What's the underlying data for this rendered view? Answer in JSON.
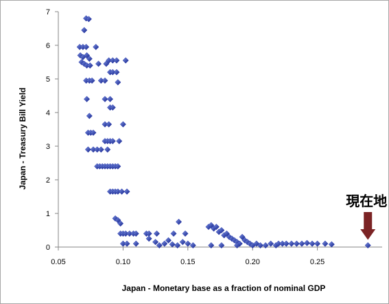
{
  "chart_data": {
    "type": "scatter",
    "title": "",
    "xlabel": "Japan - Monetary base as a fraction of nominal GDP",
    "ylabel": "Japan - Treasury Bill Yield",
    "xlim": [
      0.05,
      0.3
    ],
    "ylim": [
      0,
      7
    ],
    "xticks": [
      "0.05",
      "0.10",
      "0.15",
      "0.20",
      "0.25"
    ],
    "xtick_values": [
      0.05,
      0.1,
      0.15,
      0.2,
      0.25
    ],
    "yticks": [
      "0",
      "1",
      "2",
      "3",
      "4",
      "5",
      "6",
      "7"
    ],
    "ytick_values": [
      0,
      1,
      2,
      3,
      4,
      5,
      6,
      7
    ],
    "grid": false,
    "legend": "none",
    "marker": "diamond",
    "marker_color": "#1f2fa8",
    "annotation": {
      "text": "現在地",
      "points_to": [
        0.289,
        0.05
      ],
      "arrow_color": "#7b2324"
    },
    "points": [
      [
        0.0715,
        6.8
      ],
      [
        0.0735,
        6.78
      ],
      [
        0.07,
        6.45
      ],
      [
        0.0665,
        5.95
      ],
      [
        0.069,
        5.95
      ],
      [
        0.0715,
        5.95
      ],
      [
        0.079,
        5.95
      ],
      [
        0.067,
        5.7
      ],
      [
        0.069,
        5.65
      ],
      [
        0.072,
        5.7
      ],
      [
        0.074,
        5.6
      ],
      [
        0.068,
        5.5
      ],
      [
        0.07,
        5.45
      ],
      [
        0.072,
        5.4
      ],
      [
        0.0745,
        5.4
      ],
      [
        0.081,
        5.45
      ],
      [
        0.087,
        5.45
      ],
      [
        0.089,
        5.55
      ],
      [
        0.092,
        5.55
      ],
      [
        0.095,
        5.55
      ],
      [
        0.102,
        5.55
      ],
      [
        0.09,
        5.2
      ],
      [
        0.092,
        5.2
      ],
      [
        0.095,
        5.2
      ],
      [
        0.0715,
        4.95
      ],
      [
        0.074,
        4.95
      ],
      [
        0.076,
        4.95
      ],
      [
        0.083,
        4.95
      ],
      [
        0.086,
        4.95
      ],
      [
        0.096,
        4.9
      ],
      [
        0.072,
        4.4
      ],
      [
        0.086,
        4.4
      ],
      [
        0.09,
        4.4
      ],
      [
        0.074,
        3.9
      ],
      [
        0.09,
        4.15
      ],
      [
        0.092,
        4.15
      ],
      [
        0.073,
        3.4
      ],
      [
        0.075,
        3.4
      ],
      [
        0.077,
        3.4
      ],
      [
        0.086,
        3.65
      ],
      [
        0.089,
        3.65
      ],
      [
        0.1,
        3.65
      ],
      [
        0.086,
        3.15
      ],
      [
        0.088,
        3.15
      ],
      [
        0.09,
        3.15
      ],
      [
        0.092,
        3.15
      ],
      [
        0.097,
        3.15
      ],
      [
        0.073,
        2.9
      ],
      [
        0.077,
        2.9
      ],
      [
        0.08,
        2.9
      ],
      [
        0.083,
        2.9
      ],
      [
        0.088,
        2.9
      ],
      [
        0.08,
        2.4
      ],
      [
        0.082,
        2.4
      ],
      [
        0.084,
        2.4
      ],
      [
        0.086,
        2.4
      ],
      [
        0.088,
        2.4
      ],
      [
        0.09,
        2.4
      ],
      [
        0.092,
        2.4
      ],
      [
        0.094,
        2.4
      ],
      [
        0.096,
        2.4
      ],
      [
        0.09,
        1.65
      ],
      [
        0.092,
        1.65
      ],
      [
        0.094,
        1.65
      ],
      [
        0.096,
        1.65
      ],
      [
        0.099,
        1.65
      ],
      [
        0.103,
        1.65
      ],
      [
        0.094,
        0.85
      ],
      [
        0.096,
        0.8
      ],
      [
        0.098,
        0.7
      ],
      [
        0.098,
        0.4
      ],
      [
        0.1,
        0.4
      ],
      [
        0.102,
        0.4
      ],
      [
        0.105,
        0.4
      ],
      [
        0.108,
        0.4
      ],
      [
        0.11,
        0.4
      ],
      [
        0.118,
        0.4
      ],
      [
        0.12,
        0.4
      ],
      [
        0.126,
        0.4
      ],
      [
        0.139,
        0.4
      ],
      [
        0.1,
        0.1
      ],
      [
        0.103,
        0.1
      ],
      [
        0.11,
        0.1
      ],
      [
        0.12,
        0.25
      ],
      [
        0.125,
        0.15
      ],
      [
        0.128,
        0.05
      ],
      [
        0.132,
        0.1
      ],
      [
        0.135,
        0.2
      ],
      [
        0.138,
        0.08
      ],
      [
        0.142,
        0.05
      ],
      [
        0.143,
        0.75
      ],
      [
        0.146,
        0.15
      ],
      [
        0.148,
        0.4
      ],
      [
        0.15,
        0.1
      ],
      [
        0.154,
        0.05
      ],
      [
        0.166,
        0.6
      ],
      [
        0.168,
        0.65
      ],
      [
        0.17,
        0.55
      ],
      [
        0.172,
        0.6
      ],
      [
        0.174,
        0.45
      ],
      [
        0.176,
        0.5
      ],
      [
        0.178,
        0.35
      ],
      [
        0.18,
        0.4
      ],
      [
        0.182,
        0.3
      ],
      [
        0.184,
        0.25
      ],
      [
        0.186,
        0.2
      ],
      [
        0.188,
        0.15
      ],
      [
        0.19,
        0.1
      ],
      [
        0.192,
        0.3
      ],
      [
        0.194,
        0.2
      ],
      [
        0.196,
        0.15
      ],
      [
        0.198,
        0.1
      ],
      [
        0.2,
        0.05
      ],
      [
        0.203,
        0.1
      ],
      [
        0.168,
        0.05
      ],
      [
        0.176,
        0.05
      ],
      [
        0.188,
        0.05
      ],
      [
        0.206,
        0.05
      ],
      [
        0.21,
        0.05
      ],
      [
        0.214,
        0.1
      ],
      [
        0.218,
        0.05
      ],
      [
        0.22,
        0.1
      ],
      [
        0.223,
        0.1
      ],
      [
        0.226,
        0.1
      ],
      [
        0.23,
        0.1
      ],
      [
        0.234,
        0.1
      ],
      [
        0.238,
        0.1
      ],
      [
        0.242,
        0.12
      ],
      [
        0.246,
        0.1
      ],
      [
        0.25,
        0.1
      ],
      [
        0.256,
        0.1
      ],
      [
        0.261,
        0.08
      ],
      [
        0.289,
        0.05
      ]
    ]
  }
}
